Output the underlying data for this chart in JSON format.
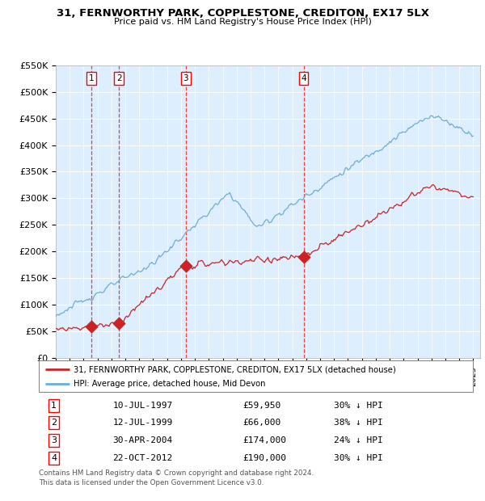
{
  "title": "31, FERNWORTHY PARK, COPPLESTONE, CREDITON, EX17 5LX",
  "subtitle": "Price paid vs. HM Land Registry's House Price Index (HPI)",
  "ylim": [
    0,
    550000
  ],
  "yticks": [
    0,
    50000,
    100000,
    150000,
    200000,
    250000,
    300000,
    350000,
    400000,
    450000,
    500000,
    550000
  ],
  "ytick_labels": [
    "£0",
    "£50K",
    "£100K",
    "£150K",
    "£200K",
    "£250K",
    "£300K",
    "£350K",
    "£400K",
    "£450K",
    "£500K",
    "£550K"
  ],
  "hpi_color": "#6baed6",
  "price_color": "#cc2222",
  "background_color": "#ddeeff",
  "sale_prices": [
    59950,
    66000,
    174000,
    190000
  ],
  "sale_years": [
    1997.54,
    1999.54,
    2004.33,
    2012.81
  ],
  "sale_labels": [
    "1",
    "2",
    "3",
    "4"
  ],
  "legend_property": "31, FERNWORTHY PARK, COPPLESTONE, CREDITON, EX17 5LX (detached house)",
  "legend_hpi": "HPI: Average price, detached house, Mid Devon",
  "table_entries": [
    {
      "num": "1",
      "date": "10-JUL-1997",
      "price": "£59,950",
      "hpi": "30% ↓ HPI"
    },
    {
      "num": "2",
      "date": "12-JUL-1999",
      "price": "£66,000",
      "hpi": "38% ↓ HPI"
    },
    {
      "num": "3",
      "date": "30-APR-2004",
      "price": "£174,000",
      "hpi": "24% ↓ HPI"
    },
    {
      "num": "4",
      "date": "22-OCT-2012",
      "price": "£190,000",
      "hpi": "30% ↓ HPI"
    }
  ],
  "footnote1": "Contains HM Land Registry data © Crown copyright and database right 2024.",
  "footnote2": "This data is licensed under the Open Government Licence v3.0."
}
